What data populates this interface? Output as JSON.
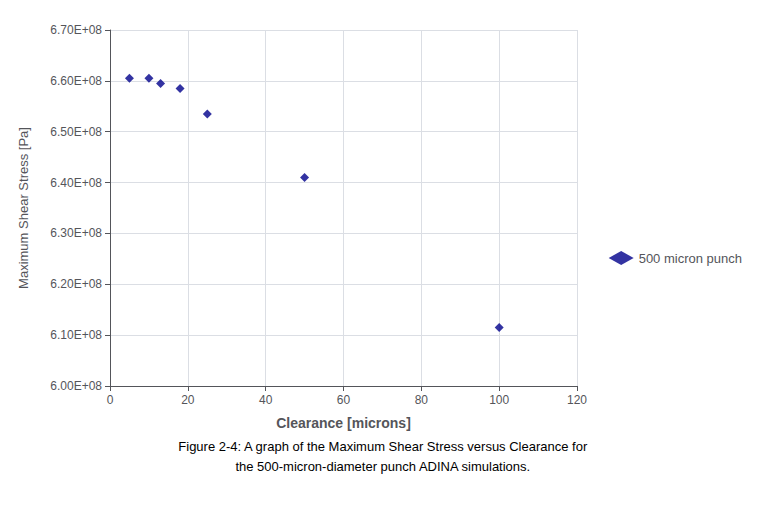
{
  "chart_data": {
    "type": "scatter",
    "x": [
      5,
      10,
      13,
      18,
      25,
      50,
      100
    ],
    "series": [
      {
        "name": "500 micron punch",
        "color": "#00008B",
        "marker": "diamond",
        "values": [
          660500000,
          660500000,
          659500000,
          658500000,
          653500000,
          641000000,
          611500000
        ]
      }
    ],
    "xlabel": "Clearance [microns]",
    "ylabel": "Maximum Shear Stress [Pa]",
    "xlim": [
      0,
      120
    ],
    "ylim": [
      600000000,
      670000000
    ],
    "xticks": [
      0,
      20,
      40,
      60,
      80,
      100,
      120
    ],
    "yticks": [
      {
        "value": 600000000,
        "label": "6.00E+08"
      },
      {
        "value": 610000000,
        "label": "6.10E+08"
      },
      {
        "value": 620000000,
        "label": "6.20E+08"
      },
      {
        "value": 630000000,
        "label": "6.30E+08"
      },
      {
        "value": 640000000,
        "label": "6.40E+08"
      },
      {
        "value": 650000000,
        "label": "6.50E+08"
      },
      {
        "value": 660000000,
        "label": "6.60E+08"
      },
      {
        "value": 670000000,
        "label": "6.70E+08"
      }
    ],
    "grid": true,
    "legend": "right",
    "annotations": [
      "Figure 2-4: A graph of the Maximum Shear Stress versus Clearance for",
      "the 500-micron-diameter punch ADINA simulations."
    ]
  }
}
